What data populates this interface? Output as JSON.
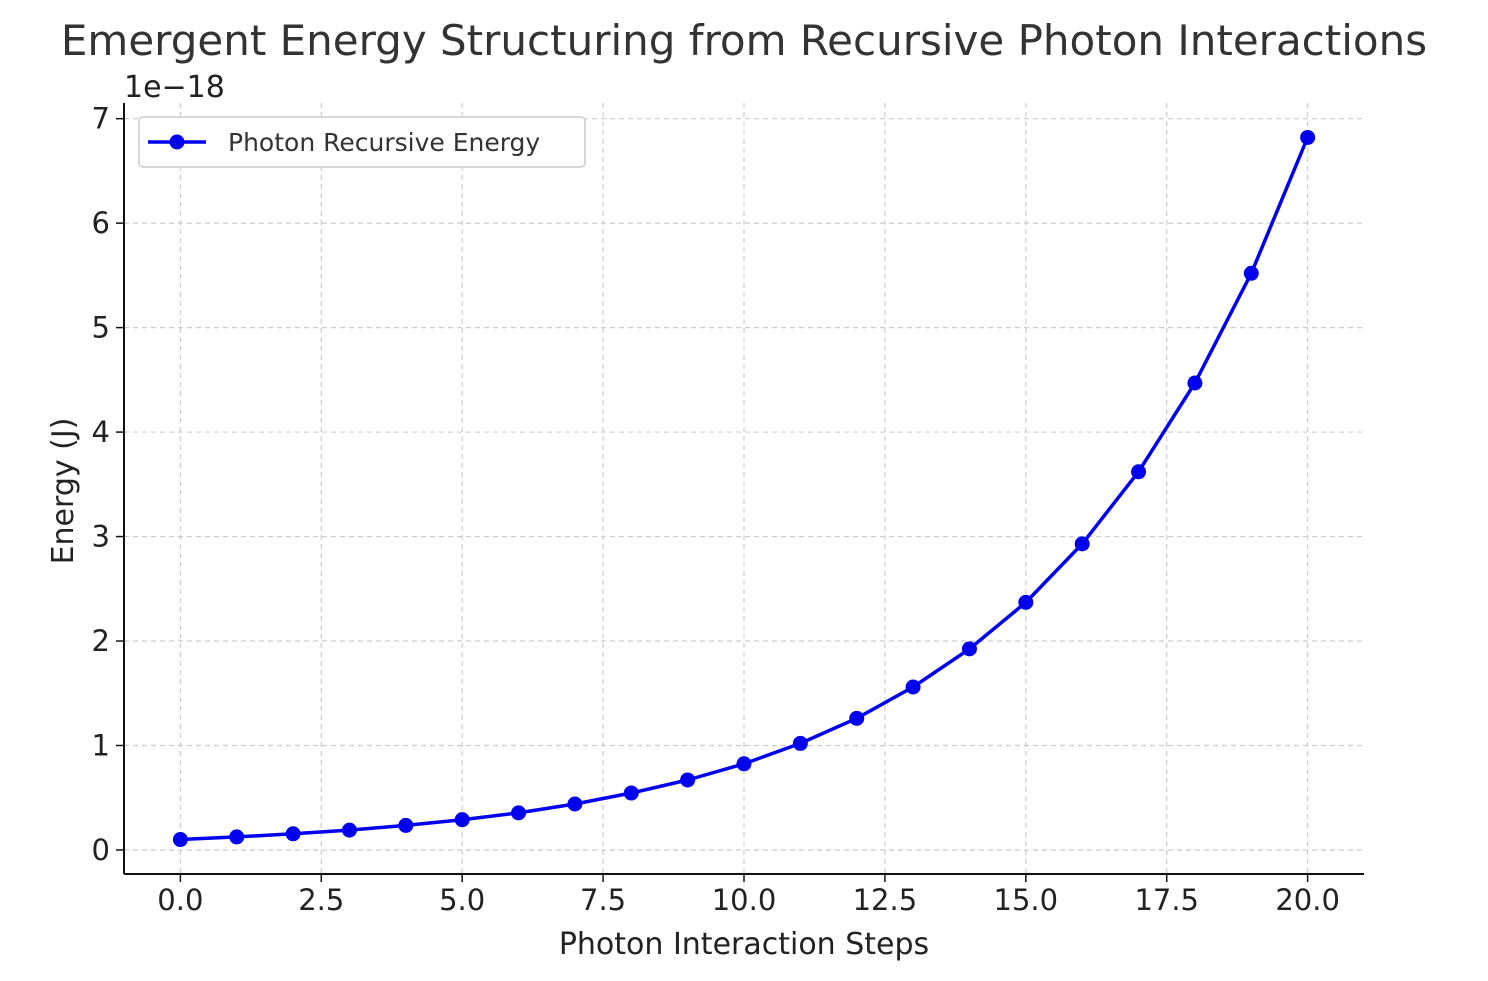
{
  "chart_data": {
    "type": "line",
    "title": "Emergent Energy Structuring from Recursive Photon Interactions",
    "xlabel": "Photon Interaction Steps",
    "ylabel": "Energy (J)",
    "y_offset_label": "1e−18",
    "y_scale": 1e-18,
    "xlim": [
      -1,
      21
    ],
    "ylim": [
      -0.23,
      7.15
    ],
    "x_ticks": [
      0,
      2.5,
      5,
      7.5,
      10,
      12.5,
      15,
      17.5,
      20
    ],
    "x_tick_labels": [
      "0.0",
      "2.5",
      "5.0",
      "7.5",
      "10.0",
      "12.5",
      "15.0",
      "17.5",
      "20.0"
    ],
    "y_ticks": [
      0,
      1,
      2,
      3,
      4,
      5,
      6,
      7
    ],
    "y_tick_labels": [
      "0",
      "1",
      "2",
      "3",
      "4",
      "5",
      "6",
      "7"
    ],
    "grid": true,
    "legend": "top-left",
    "series": [
      {
        "name": "Photon Recursive Energy",
        "color": "#0000ee",
        "marker": "circle",
        "x": [
          0,
          1,
          2,
          3,
          4,
          5,
          6,
          7,
          8,
          9,
          10,
          11,
          12,
          13,
          14,
          15,
          16,
          17,
          18,
          19,
          20
        ],
        "y": [
          0.1,
          0.125,
          0.155,
          0.19,
          0.235,
          0.29,
          0.355,
          0.44,
          0.545,
          0.67,
          0.825,
          1.02,
          1.26,
          1.56,
          1.925,
          2.37,
          2.93,
          3.62,
          4.47,
          5.52,
          6.82
        ]
      }
    ]
  }
}
